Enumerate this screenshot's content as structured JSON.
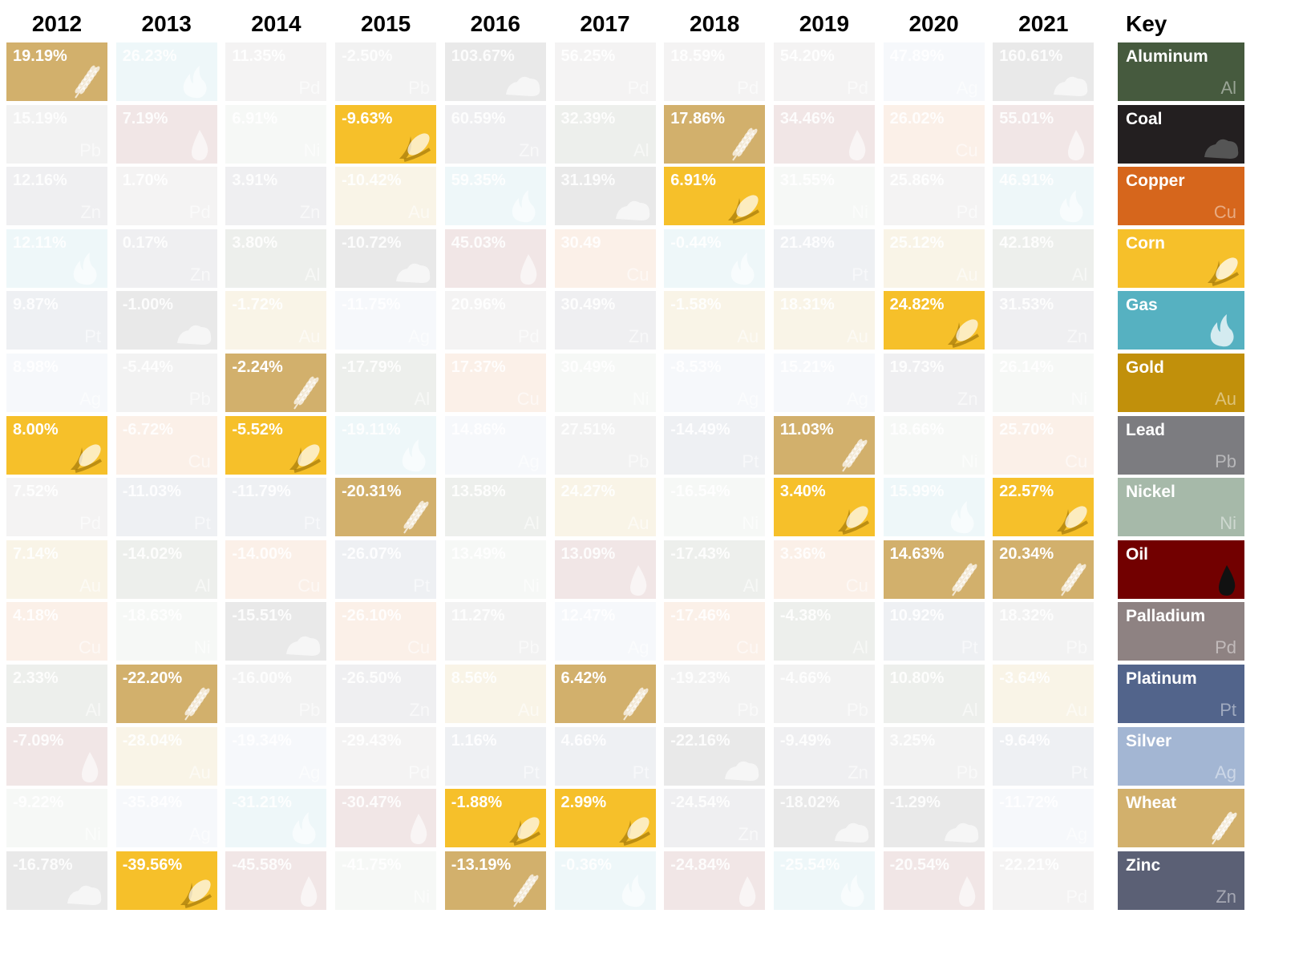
{
  "key_title": "Key",
  "commodities": {
    "Aluminum": {
      "symbol": "Al",
      "color": "#465a3e",
      "icon": "symbol"
    },
    "Coal": {
      "symbol": "",
      "color": "#231f20",
      "icon": "coal-icon"
    },
    "Copper": {
      "symbol": "Cu",
      "color": "#d6661c",
      "icon": "symbol"
    },
    "Corn": {
      "symbol": "",
      "color": "#f6c02a",
      "icon": "corn-icon"
    },
    "Gas": {
      "symbol": "",
      "color": "#56b1c1",
      "icon": "flame-icon"
    },
    "Gold": {
      "symbol": "Au",
      "color": "#c1900b",
      "icon": "symbol"
    },
    "Lead": {
      "symbol": "Pb",
      "color": "#7c7c80",
      "icon": "symbol"
    },
    "Nickel": {
      "symbol": "Ni",
      "color": "#a6b9a9",
      "icon": "symbol"
    },
    "Oil": {
      "symbol": "",
      "color": "#720000",
      "icon": "oil-drop-icon"
    },
    "Palladium": {
      "symbol": "Pd",
      "color": "#8e8282",
      "icon": "symbol"
    },
    "Platinum": {
      "symbol": "Pt",
      "color": "#52648b",
      "icon": "symbol"
    },
    "Silver": {
      "symbol": "Ag",
      "color": "#a3b6d3",
      "icon": "symbol"
    },
    "Wheat": {
      "symbol": "",
      "color": "#d2b06c",
      "icon": "wheat-icon"
    },
    "Zinc": {
      "symbol": "Zn",
      "color": "#5b6075",
      "icon": "symbol"
    }
  },
  "key_order": [
    "Aluminum",
    "Coal",
    "Copper",
    "Corn",
    "Gas",
    "Gold",
    "Lead",
    "Nickel",
    "Oil",
    "Palladium",
    "Platinum",
    "Silver",
    "Wheat",
    "Zinc"
  ],
  "highlighted": [
    "Wheat",
    "Corn"
  ],
  "chart_data": {
    "type": "table",
    "title": "",
    "columns": [
      {
        "year": "2012",
        "cells": [
          [
            "Wheat",
            "19.19%"
          ],
          [
            "Lead",
            "15.19%"
          ],
          [
            "Zinc",
            "12.16%"
          ],
          [
            "Gas",
            "12.11%"
          ],
          [
            "Platinum",
            "9.87%"
          ],
          [
            "Silver",
            "8.98%"
          ],
          [
            "Corn",
            "8.00%"
          ],
          [
            "Palladium",
            "7.52%"
          ],
          [
            "Gold",
            "7.14%"
          ],
          [
            "Copper",
            "4.18%"
          ],
          [
            "Aluminum",
            "2.33%"
          ],
          [
            "Oil",
            "-7.09%"
          ],
          [
            "Nickel",
            "-9.22%"
          ],
          [
            "Coal",
            "-16.78%"
          ]
        ]
      },
      {
        "year": "2013",
        "cells": [
          [
            "Gas",
            "26.23%"
          ],
          [
            "Oil",
            "7.19%"
          ],
          [
            "Palladium",
            "1.70%"
          ],
          [
            "Zinc",
            "0.17%"
          ],
          [
            "Coal",
            "-1.00%"
          ],
          [
            "Lead",
            "-5.44%"
          ],
          [
            "Copper",
            "-6.72%"
          ],
          [
            "Platinum",
            "-11.03%"
          ],
          [
            "Aluminum",
            "-14.02%"
          ],
          [
            "Nickel",
            "-18.63%"
          ],
          [
            "Wheat",
            "-22.20%"
          ],
          [
            "Gold",
            "-28.04%"
          ],
          [
            "Silver",
            "-35.84%"
          ],
          [
            "Corn",
            "-39.56%"
          ]
        ]
      },
      {
        "year": "2014",
        "cells": [
          [
            "Palladium",
            "11.35%"
          ],
          [
            "Nickel",
            "6.91%"
          ],
          [
            "Zinc",
            "3.91%"
          ],
          [
            "Aluminum",
            "3.80%"
          ],
          [
            "Gold",
            "-1.72%"
          ],
          [
            "Wheat",
            "-2.24%"
          ],
          [
            "Corn",
            "-5.52%"
          ],
          [
            "Platinum",
            "-11.79%"
          ],
          [
            "Copper",
            "-14.00%"
          ],
          [
            "Coal",
            "-15.51%"
          ],
          [
            "Lead",
            "-16.00%"
          ],
          [
            "Silver",
            "-19.34%"
          ],
          [
            "Gas",
            "-31.21%"
          ],
          [
            "Oil",
            "-45.58%"
          ]
        ]
      },
      {
        "year": "2015",
        "cells": [
          [
            "Lead",
            "-2.50%"
          ],
          [
            "Corn",
            "-9.63%"
          ],
          [
            "Gold",
            "-10.42%"
          ],
          [
            "Coal",
            "-10.72%"
          ],
          [
            "Silver",
            "-11.75%"
          ],
          [
            "Aluminum",
            "-17.79%"
          ],
          [
            "Gas",
            "-19.11%"
          ],
          [
            "Wheat",
            "-20.31%"
          ],
          [
            "Platinum",
            "-26.07%"
          ],
          [
            "Copper",
            "-26.10%"
          ],
          [
            "Zinc",
            "-26.50%"
          ],
          [
            "Palladium",
            "-29.43%"
          ],
          [
            "Oil",
            "-30.47%"
          ],
          [
            "Nickel",
            "-41.75%"
          ]
        ]
      },
      {
        "year": "2016",
        "cells": [
          [
            "Coal",
            "103.67%"
          ],
          [
            "Zinc",
            "60.59%"
          ],
          [
            "Gas",
            "59.35%"
          ],
          [
            "Oil",
            "45.03%"
          ],
          [
            "Palladium",
            "20.96%"
          ],
          [
            "Copper",
            "17.37%"
          ],
          [
            "Silver",
            "14.86%"
          ],
          [
            "Aluminum",
            "13.58%"
          ],
          [
            "Nickel",
            "13.49%"
          ],
          [
            "Lead",
            "11.27%"
          ],
          [
            "Gold",
            "8.56%"
          ],
          [
            "Platinum",
            "1.16%"
          ],
          [
            "Corn",
            "-1.88%"
          ],
          [
            "Wheat",
            "-13.19%"
          ]
        ]
      },
      {
        "year": "2017",
        "cells": [
          [
            "Palladium",
            "56.25%"
          ],
          [
            "Aluminum",
            "32.39%"
          ],
          [
            "Coal",
            "31.19%"
          ],
          [
            "Copper",
            "30.49"
          ],
          [
            "Zinc",
            "30.49%"
          ],
          [
            "Nickel",
            "30.49%"
          ],
          [
            "Lead",
            "27.51%"
          ],
          [
            "Gold",
            "24.27%"
          ],
          [
            "Oil",
            "13.09%"
          ],
          [
            "Silver",
            "12.47%"
          ],
          [
            "Wheat",
            "6.42%"
          ],
          [
            "Platinum",
            "4.66%"
          ],
          [
            "Corn",
            "2.99%"
          ],
          [
            "Gas",
            "-0.36%"
          ]
        ]
      },
      {
        "year": "2018",
        "cells": [
          [
            "Palladium",
            "18.59%"
          ],
          [
            "Wheat",
            "17.86%"
          ],
          [
            "Corn",
            "6.91%"
          ],
          [
            "Gas",
            "-0.44%"
          ],
          [
            "Gold",
            "-1.58%"
          ],
          [
            "Silver",
            "-8.53%"
          ],
          [
            "Platinum",
            "-14.49%"
          ],
          [
            "Nickel",
            "-16.54%"
          ],
          [
            "Aluminum",
            "-17.43%"
          ],
          [
            "Copper",
            "-17.46%"
          ],
          [
            "Lead",
            "-19.23%"
          ],
          [
            "Coal",
            "-22.16%"
          ],
          [
            "Zinc",
            "-24.54%"
          ],
          [
            "Oil",
            "-24.84%"
          ]
        ]
      },
      {
        "year": "2019",
        "cells": [
          [
            "Palladium",
            "54.20%"
          ],
          [
            "Oil",
            "34.46%"
          ],
          [
            "Nickel",
            "31.55%"
          ],
          [
            "Platinum",
            "21.48%"
          ],
          [
            "Gold",
            "18.31%"
          ],
          [
            "Silver",
            "15.21%"
          ],
          [
            "Wheat",
            "11.03%"
          ],
          [
            "Corn",
            "3.40%"
          ],
          [
            "Copper",
            "3.36%"
          ],
          [
            "Aluminum",
            "-4.38%"
          ],
          [
            "Lead",
            "-4.66%"
          ],
          [
            "Zinc",
            "-9.49%"
          ],
          [
            "Coal",
            "-18.02%"
          ],
          [
            "Gas",
            "-25.54%"
          ]
        ]
      },
      {
        "year": "2020",
        "cells": [
          [
            "Silver",
            "47.89%"
          ],
          [
            "Copper",
            "26.02%"
          ],
          [
            "Palladium",
            "25.86%"
          ],
          [
            "Gold",
            "25.12%"
          ],
          [
            "Corn",
            "24.82%"
          ],
          [
            "Zinc",
            "19.73%"
          ],
          [
            "Nickel",
            "18.66%"
          ],
          [
            "Gas",
            "15.99%"
          ],
          [
            "Wheat",
            "14.63%"
          ],
          [
            "Platinum",
            "10.92%"
          ],
          [
            "Aluminum",
            "10.80%"
          ],
          [
            "Lead",
            "3.25%"
          ],
          [
            "Coal",
            "-1.29%"
          ],
          [
            "Oil",
            "-20.54%"
          ]
        ]
      },
      {
        "year": "2021",
        "cells": [
          [
            "Coal",
            "160.61%"
          ],
          [
            "Oil",
            "55.01%"
          ],
          [
            "Gas",
            "46.91%"
          ],
          [
            "Aluminum",
            "42.18%"
          ],
          [
            "Zinc",
            "31.53%"
          ],
          [
            "Nickel",
            "26.14%"
          ],
          [
            "Copper",
            "25.70%"
          ],
          [
            "Corn",
            "22.57%"
          ],
          [
            "Wheat",
            "20.34%"
          ],
          [
            "Lead",
            "18.32%"
          ],
          [
            "Gold",
            "-3.64%"
          ],
          [
            "Platinum",
            "-9.64%"
          ],
          [
            "Silver",
            "-11.72%"
          ],
          [
            "Palladium",
            "-22.21%"
          ]
        ]
      }
    ]
  }
}
